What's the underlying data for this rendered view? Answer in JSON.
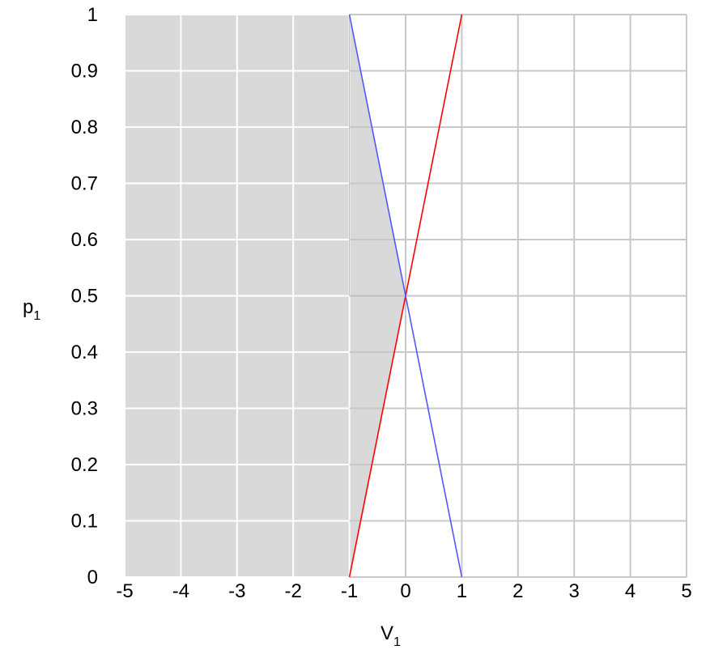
{
  "chart_data": {
    "type": "line",
    "title": "",
    "xlabel": "V",
    "xlabel_sub": "1",
    "ylabel": "p",
    "ylabel_sub": "1",
    "xlim": [
      -5,
      5
    ],
    "ylim": [
      0,
      1
    ],
    "x_ticks": [
      -5,
      -4,
      -3,
      -2,
      -1,
      0,
      1,
      2,
      3,
      4,
      5
    ],
    "y_ticks": [
      0,
      0.1,
      0.2,
      0.3,
      0.4,
      0.5,
      0.6,
      0.7,
      0.8,
      0.9,
      1
    ],
    "grid": true,
    "series": [
      {
        "color": "#ff0000",
        "x": [
          -1,
          1
        ],
        "y": [
          0,
          1
        ]
      },
      {
        "color": "#5555ff",
        "x": [
          -1,
          1
        ],
        "y": [
          1,
          0
        ]
      }
    ],
    "shaded_region": {
      "color": "#d9d9d9",
      "x": [
        -5,
        -1,
        0,
        -1,
        -5
      ],
      "y": [
        0,
        0,
        0.5,
        1,
        1
      ]
    }
  }
}
